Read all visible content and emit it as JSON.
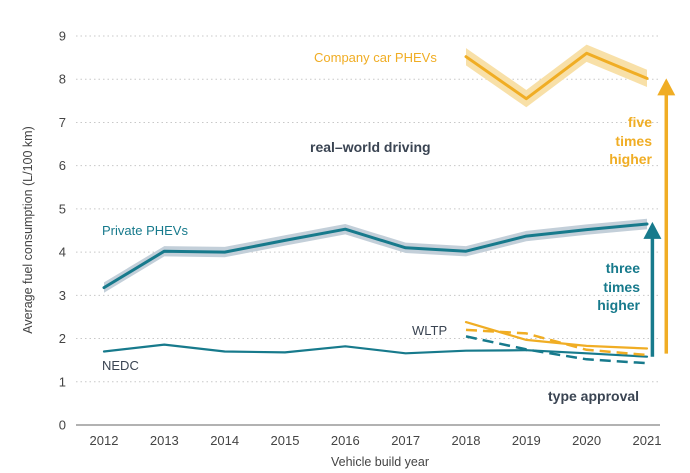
{
  "chart_data": {
    "type": "line",
    "title": "",
    "xlabel": "Vehicle build year",
    "ylabel": "Average fuel consumption (L/100 km)",
    "x": [
      2012,
      2013,
      2014,
      2015,
      2016,
      2017,
      2018,
      2019,
      2020,
      2021
    ],
    "x_tick_labels": [
      "2012",
      "2013",
      "2014",
      "2015",
      "2016",
      "2017",
      "2018",
      "2019",
      "2020",
      "2021"
    ],
    "ylim": [
      0,
      9
    ],
    "y_ticks": [
      0,
      1,
      2,
      3,
      4,
      5,
      6,
      7,
      8,
      9
    ],
    "y_tick_labels": [
      "0",
      "1",
      "2",
      "3",
      "4",
      "5",
      "6",
      "7",
      "8",
      "9"
    ],
    "grid": "horizontal dotted",
    "colors": {
      "private": "#177a8c",
      "private_band": "#c3cfd9",
      "company": "#f0ad24",
      "company_band": "#f8e0a8",
      "dark_text": "#3a4452",
      "grid": "#c8c8c8"
    },
    "series": [
      {
        "name": "Private PHEVs",
        "style": "solid-with-band",
        "x": [
          2012,
          2013,
          2014,
          2015,
          2016,
          2017,
          2018,
          2019,
          2020,
          2021
        ],
        "values": [
          3.18,
          4.02,
          4.0,
          4.27,
          4.53,
          4.1,
          4.02,
          4.37,
          4.52,
          4.65
        ],
        "band_halfwidth": 0.12
      },
      {
        "name": "Company car PHEVs",
        "style": "solid-with-band",
        "x": [
          2018,
          2019,
          2020,
          2021
        ],
        "values": [
          8.52,
          7.55,
          8.6,
          8.02
        ],
        "band_halfwidth": 0.2
      },
      {
        "name": "NEDC",
        "style": "solid-thin",
        "x": [
          2012,
          2013,
          2014,
          2015,
          2016,
          2017,
          2018,
          2019
        ],
        "values": [
          1.7,
          1.86,
          1.7,
          1.68,
          1.82,
          1.66,
          1.72,
          1.73
        ]
      },
      {
        "name": "NEDC private (2019–2021)",
        "style": "solid-thin",
        "x": [
          2019,
          2020,
          2021
        ],
        "values": [
          1.73,
          1.66,
          1.58
        ]
      },
      {
        "name": "WLTP private",
        "style": "dashed",
        "x": [
          2018,
          2019,
          2020,
          2021
        ],
        "values": [
          2.05,
          1.75,
          1.52,
          1.43
        ]
      },
      {
        "name": "NEDC company",
        "style": "solid-thin",
        "x": [
          2018,
          2019,
          2020,
          2021
        ],
        "values": [
          2.38,
          1.97,
          1.83,
          1.77
        ]
      },
      {
        "name": "WLTP company",
        "style": "dashed",
        "x": [
          2018,
          2019,
          2020,
          2021
        ],
        "values": [
          2.2,
          2.12,
          1.74,
          1.62
        ]
      }
    ],
    "annotations": {
      "company_label": "Company car PHEVs",
      "private_label": "Private PHEVs",
      "nedc_label": "NEDC",
      "wltp_label": "WLTP",
      "real_world": "real–world driving",
      "type_approval": "type approval",
      "three_times": [
        "three",
        "times",
        "higher"
      ],
      "five_times": [
        "five",
        "times",
        "higher"
      ]
    },
    "arrows": [
      {
        "name": "three-times-arrow",
        "x": 2021.09,
        "from": 1.58,
        "to": 4.7
      },
      {
        "name": "five-times-arrow",
        "x": 2021.32,
        "from": 1.65,
        "to": 8.02
      }
    ]
  }
}
